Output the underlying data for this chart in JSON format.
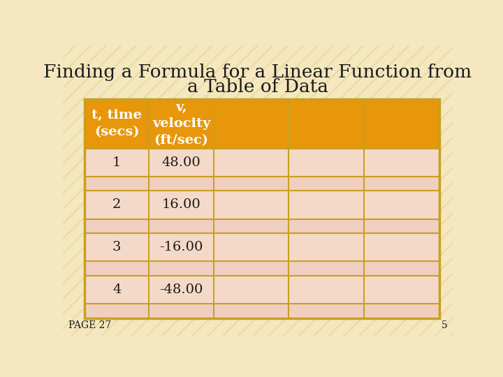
{
  "title_line1": "Finding a Formula for a Linear Function from",
  "title_line2": "a Table of Data",
  "title_fontsize": 19,
  "title_color": "#1a1a1a",
  "background_color": "#f5e8c0",
  "stripe_color": "#e8d898",
  "table_border_color": "#c8a020",
  "header_bg_color": "#E8960A",
  "header_text_color": "#ffffff",
  "row_data_color": "#f5d9c8",
  "row_sep_color": "#f0cfc0",
  "cell_text_color": "#1a1a1a",
  "page_label": "PAGE 27",
  "page_number": "5",
  "header_texts": [
    "t, time\n(secs)",
    "v,\nvelocity\n(ft/sec)",
    "",
    "",
    ""
  ],
  "data_rows": [
    [
      "1",
      "48.00"
    ],
    [
      "2",
      "16.00"
    ],
    [
      "3",
      "-16.00"
    ],
    [
      "4",
      "-48.00"
    ]
  ],
  "num_cols": 5
}
